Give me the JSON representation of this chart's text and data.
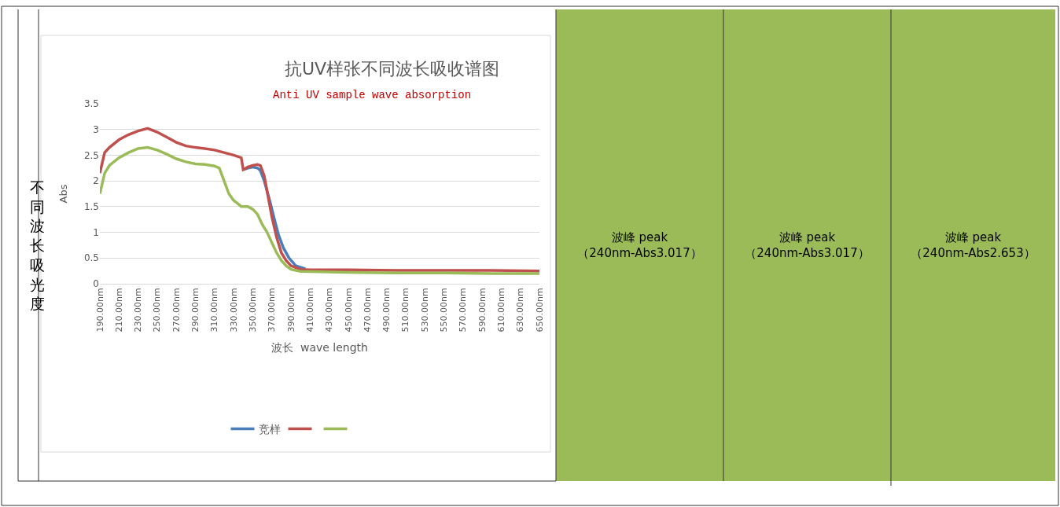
{
  "chart_data": {
    "type": "line",
    "title": "抗UV样张不同波长吸收谱图",
    "subtitle": "Anti UV sample wave absorption",
    "xlabel": "波长  wave length",
    "ylabel": "Abs",
    "annotations": [
      "不同波长吸光度",
      "波峰 peak\n（240nm-Abs3.017）",
      "波峰 peak\n（240nm-Abs3.017）",
      "波峰 peak\n（240nm-Abs2.653）"
    ],
    "series": [
      {
        "name": "竞样",
        "color": "#4a7ebb",
        "x": [
          340,
          345,
          350,
          355,
          358,
          362,
          368,
          372,
          377,
          382,
          388,
          395,
          405
        ],
        "values": [
          2.22,
          2.25,
          2.27,
          2.25,
          2.2,
          2.0,
          1.6,
          1.3,
          0.95,
          0.7,
          0.5,
          0.35,
          0.29
        ]
      },
      {
        "color": "#c0504d",
        "x": [
          190,
          195,
          200,
          210,
          220,
          230,
          240,
          250,
          260,
          270,
          280,
          290,
          300,
          310,
          320,
          330,
          338,
          340,
          345,
          350,
          355,
          358,
          362,
          366,
          370,
          375,
          380,
          385,
          390,
          400,
          410,
          450,
          500,
          550,
          600,
          650
        ],
        "values": [
          2.15,
          2.55,
          2.65,
          2.8,
          2.9,
          2.97,
          3.02,
          2.95,
          2.85,
          2.75,
          2.68,
          2.65,
          2.63,
          2.6,
          2.55,
          2.5,
          2.45,
          2.22,
          2.27,
          2.3,
          2.32,
          2.3,
          2.1,
          1.7,
          1.3,
          0.9,
          0.6,
          0.45,
          0.35,
          0.28,
          0.27,
          0.27,
          0.26,
          0.26,
          0.26,
          0.25
        ]
      },
      {
        "color": "#9bbb59",
        "x": [
          190,
          195,
          200,
          210,
          220,
          230,
          240,
          250,
          260,
          270,
          280,
          290,
          300,
          310,
          315,
          320,
          325,
          330,
          335,
          338,
          345,
          350,
          355,
          360,
          365,
          370,
          375,
          380,
          385,
          390,
          400,
          450,
          500,
          550,
          600,
          650
        ],
        "values": [
          1.75,
          2.15,
          2.3,
          2.45,
          2.55,
          2.63,
          2.65,
          2.6,
          2.52,
          2.43,
          2.37,
          2.33,
          2.32,
          2.29,
          2.25,
          2.0,
          1.75,
          1.62,
          1.55,
          1.5,
          1.5,
          1.45,
          1.35,
          1.15,
          1.0,
          0.8,
          0.6,
          0.45,
          0.35,
          0.28,
          0.24,
          0.22,
          0.21,
          0.21,
          0.2,
          0.2
        ]
      }
    ],
    "xlim": [
      190,
      650
    ],
    "xticks": [
      {
        "value": 190,
        "label": "190.00nm"
      },
      {
        "value": 210,
        "label": "210.00nm"
      },
      {
        "value": 230,
        "label": "230.00nm"
      },
      {
        "value": 250,
        "label": "250.00nm"
      },
      {
        "value": 270,
        "label": "270.00nm"
      },
      {
        "value": 290,
        "label": "290.00nm"
      },
      {
        "value": 310,
        "label": "310.00nm"
      },
      {
        "value": 330,
        "label": "330.00nm"
      },
      {
        "value": 350,
        "label": "350.00nm"
      },
      {
        "value": 370,
        "label": "370.00nm"
      },
      {
        "value": 390,
        "label": "390.00nm"
      },
      {
        "value": 410,
        "label": "410.00nm"
      },
      {
        "value": 430,
        "label": "430.00nm"
      },
      {
        "value": 450,
        "label": "450.00nm"
      },
      {
        "value": 470,
        "label": "470.00nm"
      },
      {
        "value": 490,
        "label": "490.00nm"
      },
      {
        "value": 510,
        "label": "510.00nm"
      },
      {
        "value": 530,
        "label": "530.00nm"
      },
      {
        "value": 550,
        "label": "550.00nm"
      },
      {
        "value": 570,
        "label": "570.00nm"
      },
      {
        "value": 590,
        "label": "590.00nm"
      },
      {
        "value": 610,
        "label": "610.00nm"
      },
      {
        "value": 630,
        "label": "630.00nm"
      },
      {
        "value": 650,
        "label": "650.00nm"
      }
    ],
    "ylim": [
      0,
      3.5
    ],
    "yticks": [
      0,
      0.5,
      1,
      1.5,
      2,
      2.5,
      3,
      3.5
    ],
    "grid": "y",
    "legend": "bottom",
    "marker": "none",
    "line_style": "solid"
  }
}
